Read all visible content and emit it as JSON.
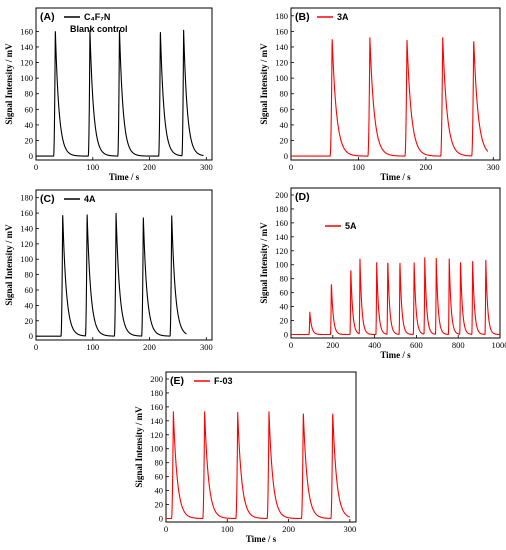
{
  "chart_data": [
    {
      "panel": "(A)",
      "type": "line",
      "xlabel": "Time / s",
      "ylabel": "Signal Intensity / mV",
      "xlim": [
        0,
        310
      ],
      "ylim": [
        -5,
        190
      ],
      "xticks": [
        0,
        100,
        200,
        300
      ],
      "yticks": [
        0,
        20,
        40,
        60,
        80,
        100,
        120,
        140,
        160
      ],
      "grid": false,
      "legend_placement": "top-left",
      "color": "#000000",
      "series": [
        {
          "name": "C₄F₇N",
          "note": "Blank control",
          "peak_times": [
            34,
            95,
            147,
            219,
            260
          ],
          "peak_heights": [
            163,
            162,
            163,
            162,
            162
          ],
          "x_end": 295
        }
      ]
    },
    {
      "panel": "(B)",
      "type": "line",
      "xlabel": "Time / s",
      "ylabel": "Signal Intensity / mV",
      "xlim": [
        0,
        310
      ],
      "ylim": [
        -5,
        190
      ],
      "xticks": [
        0,
        100,
        200,
        300
      ],
      "yticks": [
        0,
        20,
        40,
        60,
        80,
        100,
        120,
        140,
        160,
        180
      ],
      "grid": false,
      "legend_placement": "top-left",
      "color": "#ff0000",
      "series": [
        {
          "name": "3A",
          "peak_times": [
            61,
            117,
            172,
            225,
            271
          ],
          "peak_heights": [
            152,
            152,
            150,
            153,
            150
          ],
          "x_end": 292
        }
      ]
    },
    {
      "panel": "(C)",
      "type": "line",
      "xlabel": "",
      "ylabel": "Signal Intensity / mV",
      "xlim": [
        0,
        310
      ],
      "ylim": [
        -5,
        190
      ],
      "xticks": [
        0,
        100,
        200,
        300
      ],
      "yticks": [
        0,
        20,
        40,
        60,
        80,
        100,
        120,
        140,
        160,
        180
      ],
      "grid": false,
      "legend_placement": "top-left",
      "color": "#000000",
      "series": [
        {
          "name": "4A",
          "peak_times": [
            47,
            90,
            141,
            189,
            239
          ],
          "peak_heights": [
            160,
            160,
            160,
            156,
            158
          ],
          "x_end": 265
        }
      ]
    },
    {
      "panel": "(D)",
      "type": "line",
      "xlabel": "Time / s",
      "ylabel": "Signal Intensity / mV",
      "xlim": [
        0,
        1000
      ],
      "ylim": [
        -5,
        210
      ],
      "xticks": [
        0,
        200,
        400,
        600,
        800,
        1000
      ],
      "yticks": [
        0,
        20,
        40,
        60,
        80,
        100,
        120,
        140,
        160,
        180,
        200
      ],
      "grid": false,
      "legend_placement": "top-center",
      "color": "#ff0000",
      "series": [
        {
          "name": "5A",
          "peak_times": [
            90,
            193,
            286,
            330,
            410,
            463,
            521,
            589,
            640,
            695,
            757,
            811,
            869,
            932
          ],
          "peak_heights": [
            32,
            76,
            96,
            108,
            103,
            109,
            107,
            106,
            110,
            109,
            110,
            108,
            108,
            108
          ],
          "x_end": 1000
        }
      ]
    },
    {
      "panel": "(E)",
      "type": "line",
      "xlabel": "Time / s",
      "ylabel": "Signal Intensity / mV",
      "xlim": [
        0,
        310
      ],
      "ylim": [
        -5,
        210
      ],
      "xticks": [
        0,
        100,
        200,
        300
      ],
      "yticks": [
        0,
        20,
        40,
        60,
        80,
        100,
        120,
        140,
        160,
        180,
        200
      ],
      "grid": false,
      "legend_placement": "top-left",
      "color": "#ff0000",
      "series": [
        {
          "name": "F-03",
          "peak_times": [
            12,
            63,
            117,
            168,
            224,
            272
          ],
          "peak_heights": [
            153,
            153,
            152,
            153,
            153,
            153
          ],
          "x_end": 300
        }
      ]
    }
  ]
}
